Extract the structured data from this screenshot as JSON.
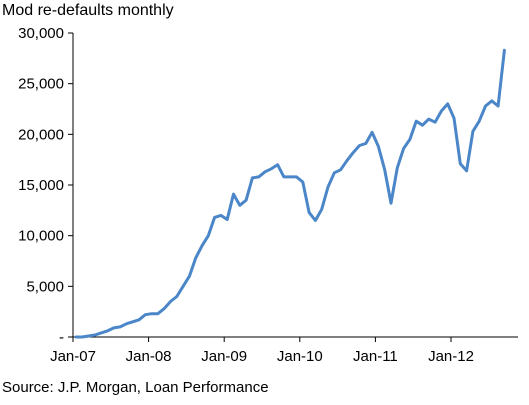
{
  "chart_data": {
    "type": "line",
    "title": "Mod re-defaults monthly",
    "source": "Source: J.P. Morgan, Loan Performance",
    "y_ticks": [
      {
        "value": 0,
        "label": "-"
      },
      {
        "value": 5000,
        "label": "5,000"
      },
      {
        "value": 10000,
        "label": "10,000"
      },
      {
        "value": 15000,
        "label": "15,000"
      },
      {
        "value": 20000,
        "label": "20,000"
      },
      {
        "value": 25000,
        "label": "25,000"
      },
      {
        "value": 30000,
        "label": "30,000"
      }
    ],
    "x_ticks": [
      "Jan-07",
      "Jan-08",
      "Jan-09",
      "Jan-10",
      "Jan-11",
      "Jan-12"
    ],
    "ylim": [
      0,
      30000
    ],
    "colors": {
      "series": "#4a86c8",
      "axis": "#000000"
    },
    "series": [
      {
        "x": [
          "Jan-07",
          "Feb-07",
          "Mar-07",
          "Apr-07",
          "May-07",
          "Jun-07",
          "Jul-07",
          "Aug-07",
          "Sep-07",
          "Oct-07",
          "Nov-07",
          "Dec-07",
          "Jan-08",
          "Feb-08",
          "Mar-08",
          "Apr-08",
          "May-08",
          "Jun-08",
          "Jul-08",
          "Aug-08",
          "Sep-08",
          "Oct-08",
          "Nov-08",
          "Dec-08",
          "Jan-09",
          "Feb-09",
          "Mar-09",
          "Apr-09",
          "May-09",
          "Jun-09",
          "Jul-09",
          "Aug-09",
          "Sep-09",
          "Oct-09",
          "Nov-09",
          "Dec-09",
          "Jan-10",
          "Feb-10",
          "Mar-10",
          "Apr-10",
          "May-10",
          "Jun-10",
          "Jul-10",
          "Aug-10",
          "Sep-10",
          "Oct-10",
          "Nov-10",
          "Dec-10",
          "Jan-11",
          "Feb-11",
          "Mar-11",
          "Apr-11",
          "May-11",
          "Jun-11",
          "Jul-11",
          "Aug-11",
          "Sep-11",
          "Oct-11",
          "Nov-11",
          "Dec-11",
          "Jan-12",
          "Feb-12",
          "Mar-12",
          "Apr-12",
          "May-12",
          "Jun-12",
          "Jul-12",
          "Aug-12",
          "Sep-12"
        ],
        "values": [
          0,
          0,
          100,
          200,
          400,
          600,
          900,
          1000,
          1300,
          1500,
          1700,
          2200,
          2300,
          2300,
          2800,
          3500,
          4000,
          5000,
          6000,
          7800,
          9000,
          10000,
          11800,
          12000,
          11600,
          14100,
          13000,
          13500,
          15700,
          15800,
          16300,
          16600,
          17000,
          15800,
          15800,
          15800,
          15300,
          12300,
          11500,
          12600,
          14800,
          16200,
          16500,
          17400,
          18200,
          18900,
          19100,
          20200,
          18800,
          16500,
          13200,
          16700,
          18600,
          19500,
          21300,
          20900,
          21500,
          21200,
          22300,
          23000,
          21600,
          17100,
          16400,
          20300,
          21300,
          22800,
          23300,
          22800,
          28300
        ]
      }
    ]
  }
}
